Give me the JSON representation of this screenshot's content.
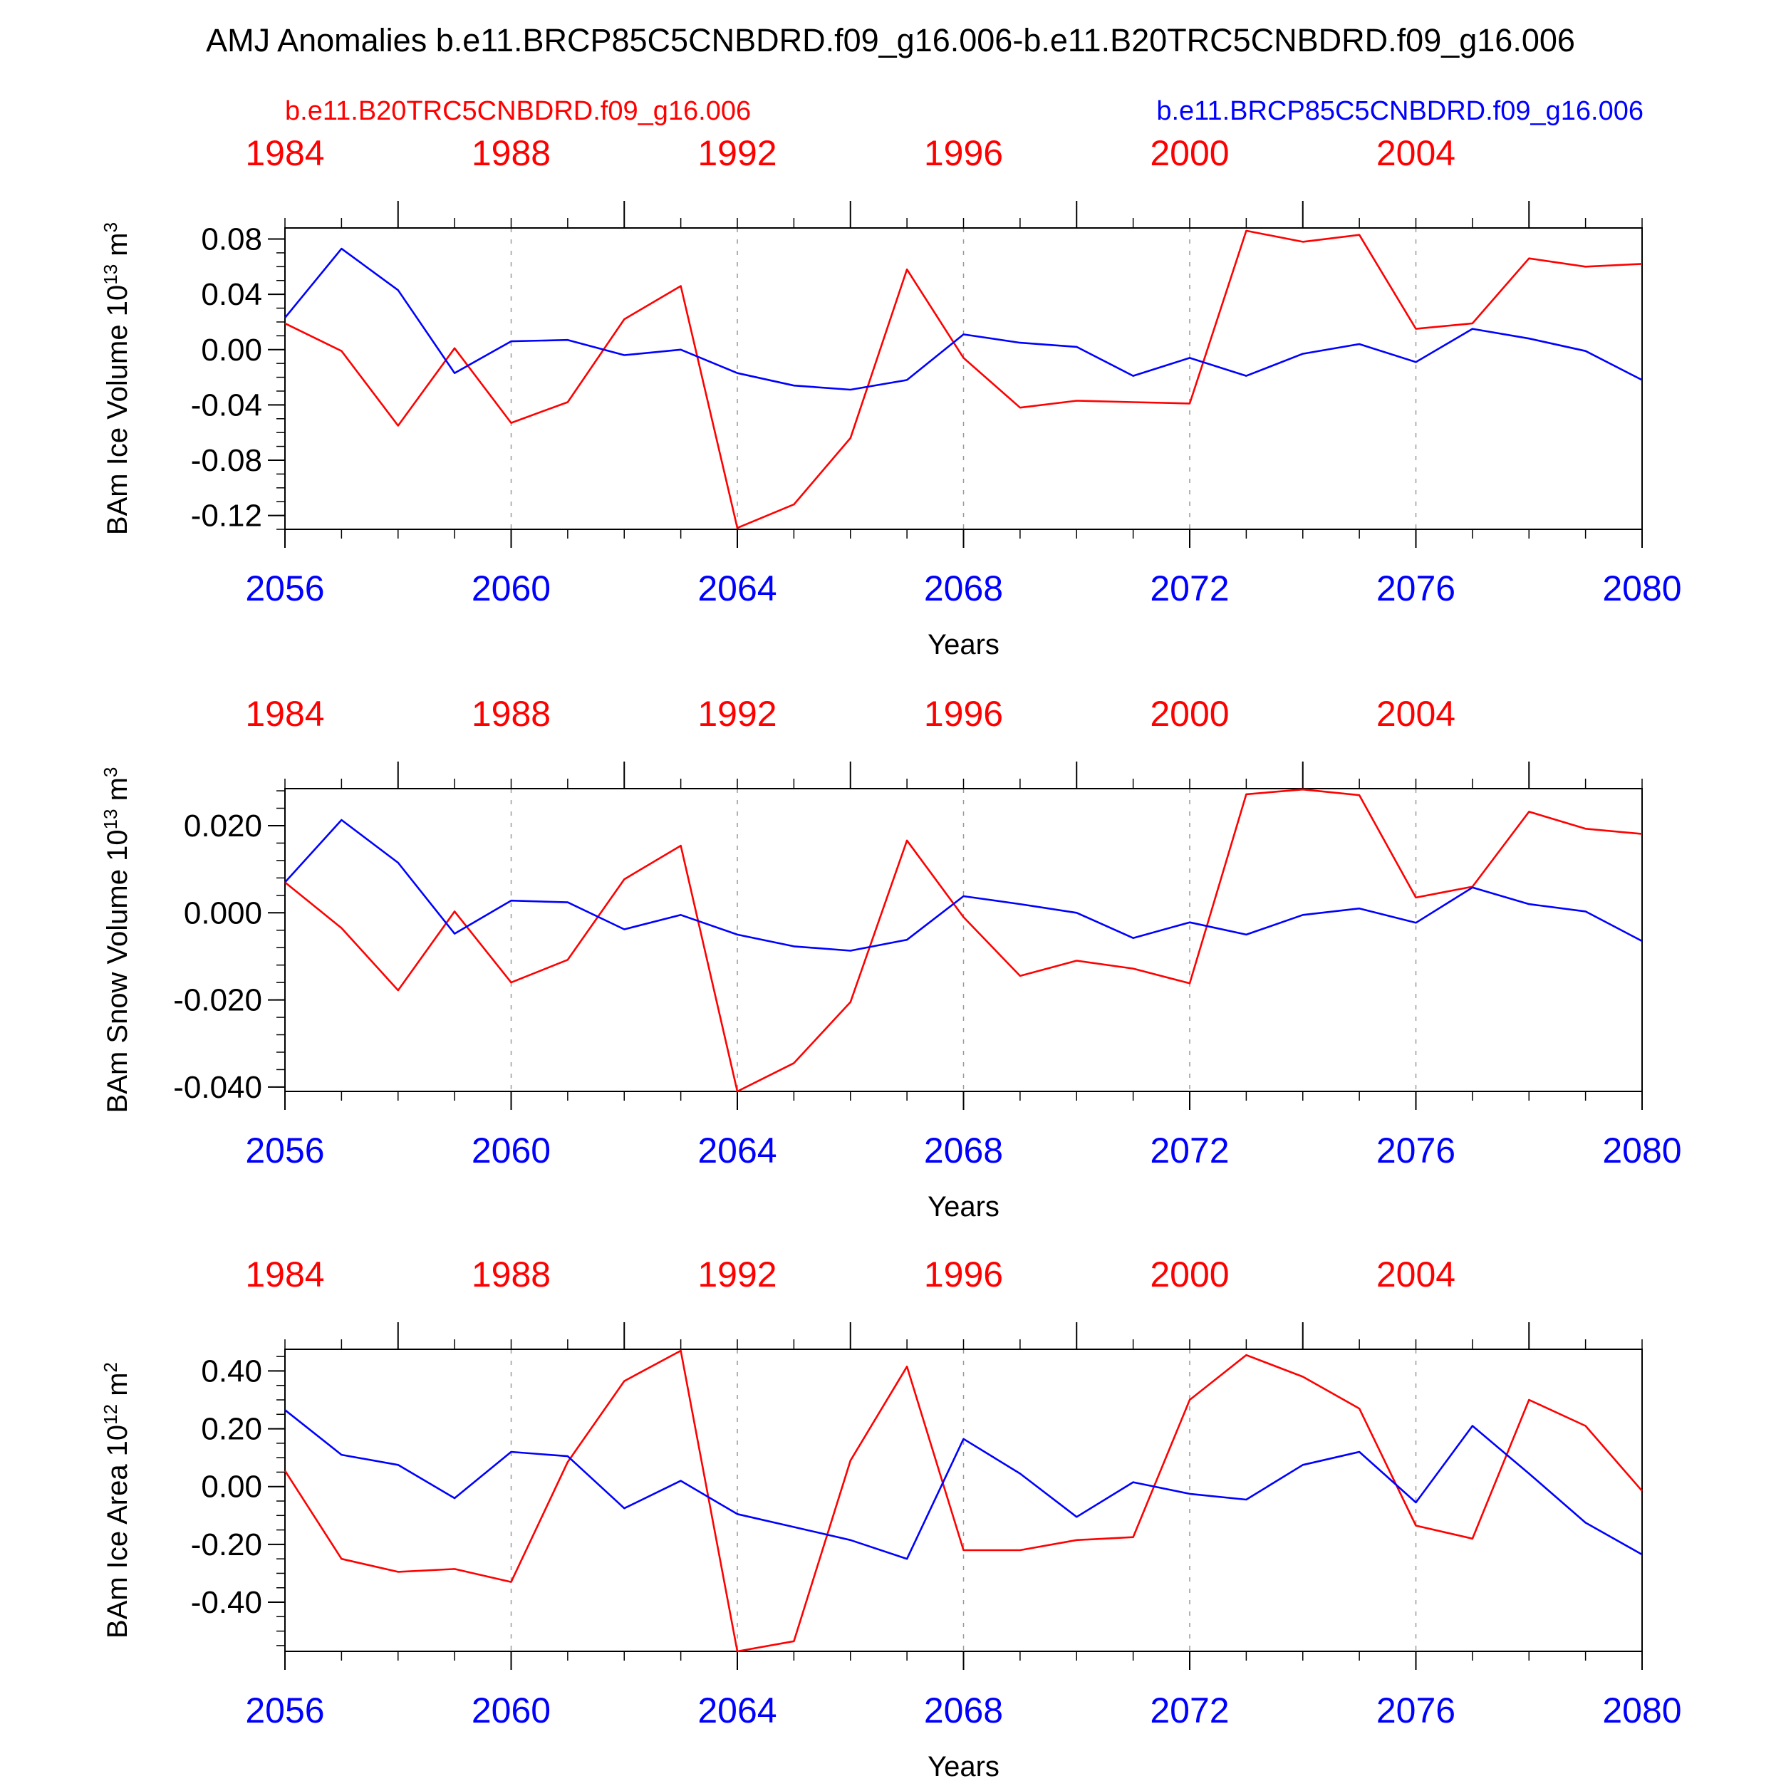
{
  "figure": {
    "title": "AMJ Anomalies b.e11.BRCP85C5CNBDRD.f09_g16.006-b.e11.B20TRC5CNBDRD.f09_g16.006",
    "legend_left": "b.e11.B20TRC5CNBDRD.f09_g16.006",
    "legend_right": "b.e11.BRCP85C5CNBDRD.f09_g16.006",
    "colors": {
      "red_series": "#ff0000",
      "blue_series": "#0000ff",
      "axis": "#000000",
      "grid": "#999999"
    }
  },
  "chart_data": [
    {
      "type": "line",
      "ylabel": "BAm Ice Volume",
      "ylabel_unit": "10",
      "ylabel_exp": "13",
      "ylabel_tail": "m",
      "ylabel_tail_exp": "3",
      "xlabel": "Years",
      "xlim": [
        2056,
        2080
      ],
      "x_top_offset": -72,
      "ylim": [
        -0.13,
        0.088
      ],
      "ytick_values": [
        0.08,
        0.04,
        0.0,
        -0.04,
        -0.08,
        -0.12
      ],
      "ytick_labels": [
        "0.08",
        "0.04",
        "0.00",
        "-0.04",
        "-0.08",
        "-0.12"
      ],
      "yminor_step": 0.01,
      "xtick_bottom": [
        "2056",
        "2060",
        "2064",
        "2068",
        "2072",
        "2076",
        "2080"
      ],
      "xtick_top": [
        "1984",
        "1988",
        "1992",
        "1996",
        "2000",
        "2004"
      ],
      "x": [
        2056,
        2057,
        2058,
        2059,
        2060,
        2061,
        2062,
        2063,
        2064,
        2065,
        2066,
        2067,
        2068,
        2069,
        2070,
        2071,
        2072,
        2073,
        2074,
        2075,
        2076,
        2077,
        2078,
        2079,
        2080
      ],
      "series": [
        {
          "name": "b.e11.B20TRC5CNBDRD.f09_g16.006",
          "color": "#ff0000",
          "values": [
            0.019,
            -0.001,
            -0.055,
            0.001,
            -0.053,
            -0.038,
            0.022,
            0.046,
            -0.129,
            -0.112,
            -0.064,
            0.058,
            -0.006,
            -0.042,
            -0.037,
            -0.038,
            -0.039,
            0.086,
            0.078,
            0.083,
            0.015,
            0.019,
            0.066,
            0.06,
            0.062
          ]
        },
        {
          "name": "b.e11.BRCP85C5CNBDRD.f09_g16.006",
          "color": "#0000ff",
          "values": [
            0.023,
            0.073,
            0.043,
            -0.017,
            0.006,
            0.007,
            -0.004,
            0.0,
            -0.017,
            -0.026,
            -0.029,
            -0.022,
            0.011,
            0.005,
            0.002,
            -0.019,
            -0.006,
            -0.019,
            -0.003,
            0.004,
            -0.009,
            0.015,
            0.008,
            -0.001,
            -0.022
          ]
        }
      ]
    },
    {
      "type": "line",
      "ylabel": "BAm Snow Volume",
      "ylabel_unit": "10",
      "ylabel_exp": "13",
      "ylabel_tail": "m",
      "ylabel_tail_exp": "3",
      "xlabel": "Years",
      "xlim": [
        2056,
        2080
      ],
      "x_top_offset": -72,
      "ylim": [
        -0.041,
        0.0285
      ],
      "ytick_values": [
        0.02,
        0.0,
        -0.02,
        -0.04
      ],
      "ytick_labels": [
        "0.020",
        "0.000",
        "-0.020",
        "-0.040"
      ],
      "yminor_step": 0.004,
      "xtick_bottom": [
        "2056",
        "2060",
        "2064",
        "2068",
        "2072",
        "2076",
        "2080"
      ],
      "xtick_top": [
        "1984",
        "1988",
        "1992",
        "1996",
        "2000",
        "2004"
      ],
      "x": [
        2056,
        2057,
        2058,
        2059,
        2060,
        2061,
        2062,
        2063,
        2064,
        2065,
        2066,
        2067,
        2068,
        2069,
        2070,
        2071,
        2072,
        2073,
        2074,
        2075,
        2076,
        2077,
        2078,
        2079,
        2080
      ],
      "series": [
        {
          "name": "b.e11.B20TRC5CNBDRD.f09_g16.006",
          "color": "#ff0000",
          "values": [
            0.007,
            -0.0035,
            -0.0178,
            0.0003,
            -0.016,
            -0.0108,
            0.0077,
            0.0154,
            -0.041,
            -0.0345,
            -0.0205,
            0.0166,
            -0.001,
            -0.0145,
            -0.011,
            -0.0128,
            -0.0162,
            0.0272,
            0.0283,
            0.027,
            0.0035,
            0.006,
            0.0232,
            0.0193,
            0.0181
          ]
        },
        {
          "name": "b.e11.BRCP85C5CNBDRD.f09_g16.006",
          "color": "#0000ff",
          "values": [
            0.007,
            0.0213,
            0.0115,
            -0.0048,
            0.0028,
            0.0024,
            -0.0038,
            -0.0005,
            -0.005,
            -0.0077,
            -0.0087,
            -0.0062,
            0.0038,
            0.002,
            0.0,
            -0.0058,
            -0.0022,
            -0.005,
            -0.0005,
            0.001,
            -0.0023,
            0.0058,
            0.002,
            0.0003,
            -0.0065
          ]
        }
      ]
    },
    {
      "type": "line",
      "ylabel": "BAm Ice Area",
      "ylabel_unit": "10",
      "ylabel_exp": "12",
      "ylabel_tail": "m",
      "ylabel_tail_exp": "2",
      "xlabel": "Years",
      "xlim": [
        2056,
        2080
      ],
      "x_top_offset": -72,
      "ylim": [
        -0.57,
        0.475
      ],
      "ytick_values": [
        0.4,
        0.2,
        0.0,
        -0.2,
        -0.4
      ],
      "ytick_labels": [
        "0.40",
        "0.20",
        "0.00",
        "-0.20",
        "-0.40"
      ],
      "yminor_step": 0.05,
      "xtick_bottom": [
        "2056",
        "2060",
        "2064",
        "2068",
        "2072",
        "2076",
        "2080"
      ],
      "xtick_top": [
        "1984",
        "1988",
        "1992",
        "1996",
        "2000",
        "2004"
      ],
      "x": [
        2056,
        2057,
        2058,
        2059,
        2060,
        2061,
        2062,
        2063,
        2064,
        2065,
        2066,
        2067,
        2068,
        2069,
        2070,
        2071,
        2072,
        2073,
        2074,
        2075,
        2076,
        2077,
        2078,
        2079,
        2080
      ],
      "series": [
        {
          "name": "b.e11.B20TRC5CNBDRD.f09_g16.006",
          "color": "#ff0000",
          "values": [
            0.055,
            -0.25,
            -0.295,
            -0.285,
            -0.33,
            0.085,
            0.365,
            0.47,
            -0.57,
            -0.535,
            0.09,
            0.415,
            -0.22,
            -0.22,
            -0.185,
            -0.175,
            0.3,
            0.455,
            0.38,
            0.27,
            -0.135,
            -0.18,
            0.3,
            0.21,
            -0.015
          ]
        },
        {
          "name": "b.e11.BRCP85C5CNBDRD.f09_g16.006",
          "color": "#0000ff",
          "values": [
            0.265,
            0.11,
            0.075,
            -0.04,
            0.12,
            0.105,
            -0.075,
            0.02,
            -0.095,
            -0.14,
            -0.185,
            -0.25,
            0.165,
            0.045,
            -0.105,
            0.015,
            -0.025,
            -0.045,
            0.075,
            0.12,
            -0.055,
            0.21,
            0.045,
            -0.125,
            -0.235
          ]
        }
      ]
    }
  ]
}
